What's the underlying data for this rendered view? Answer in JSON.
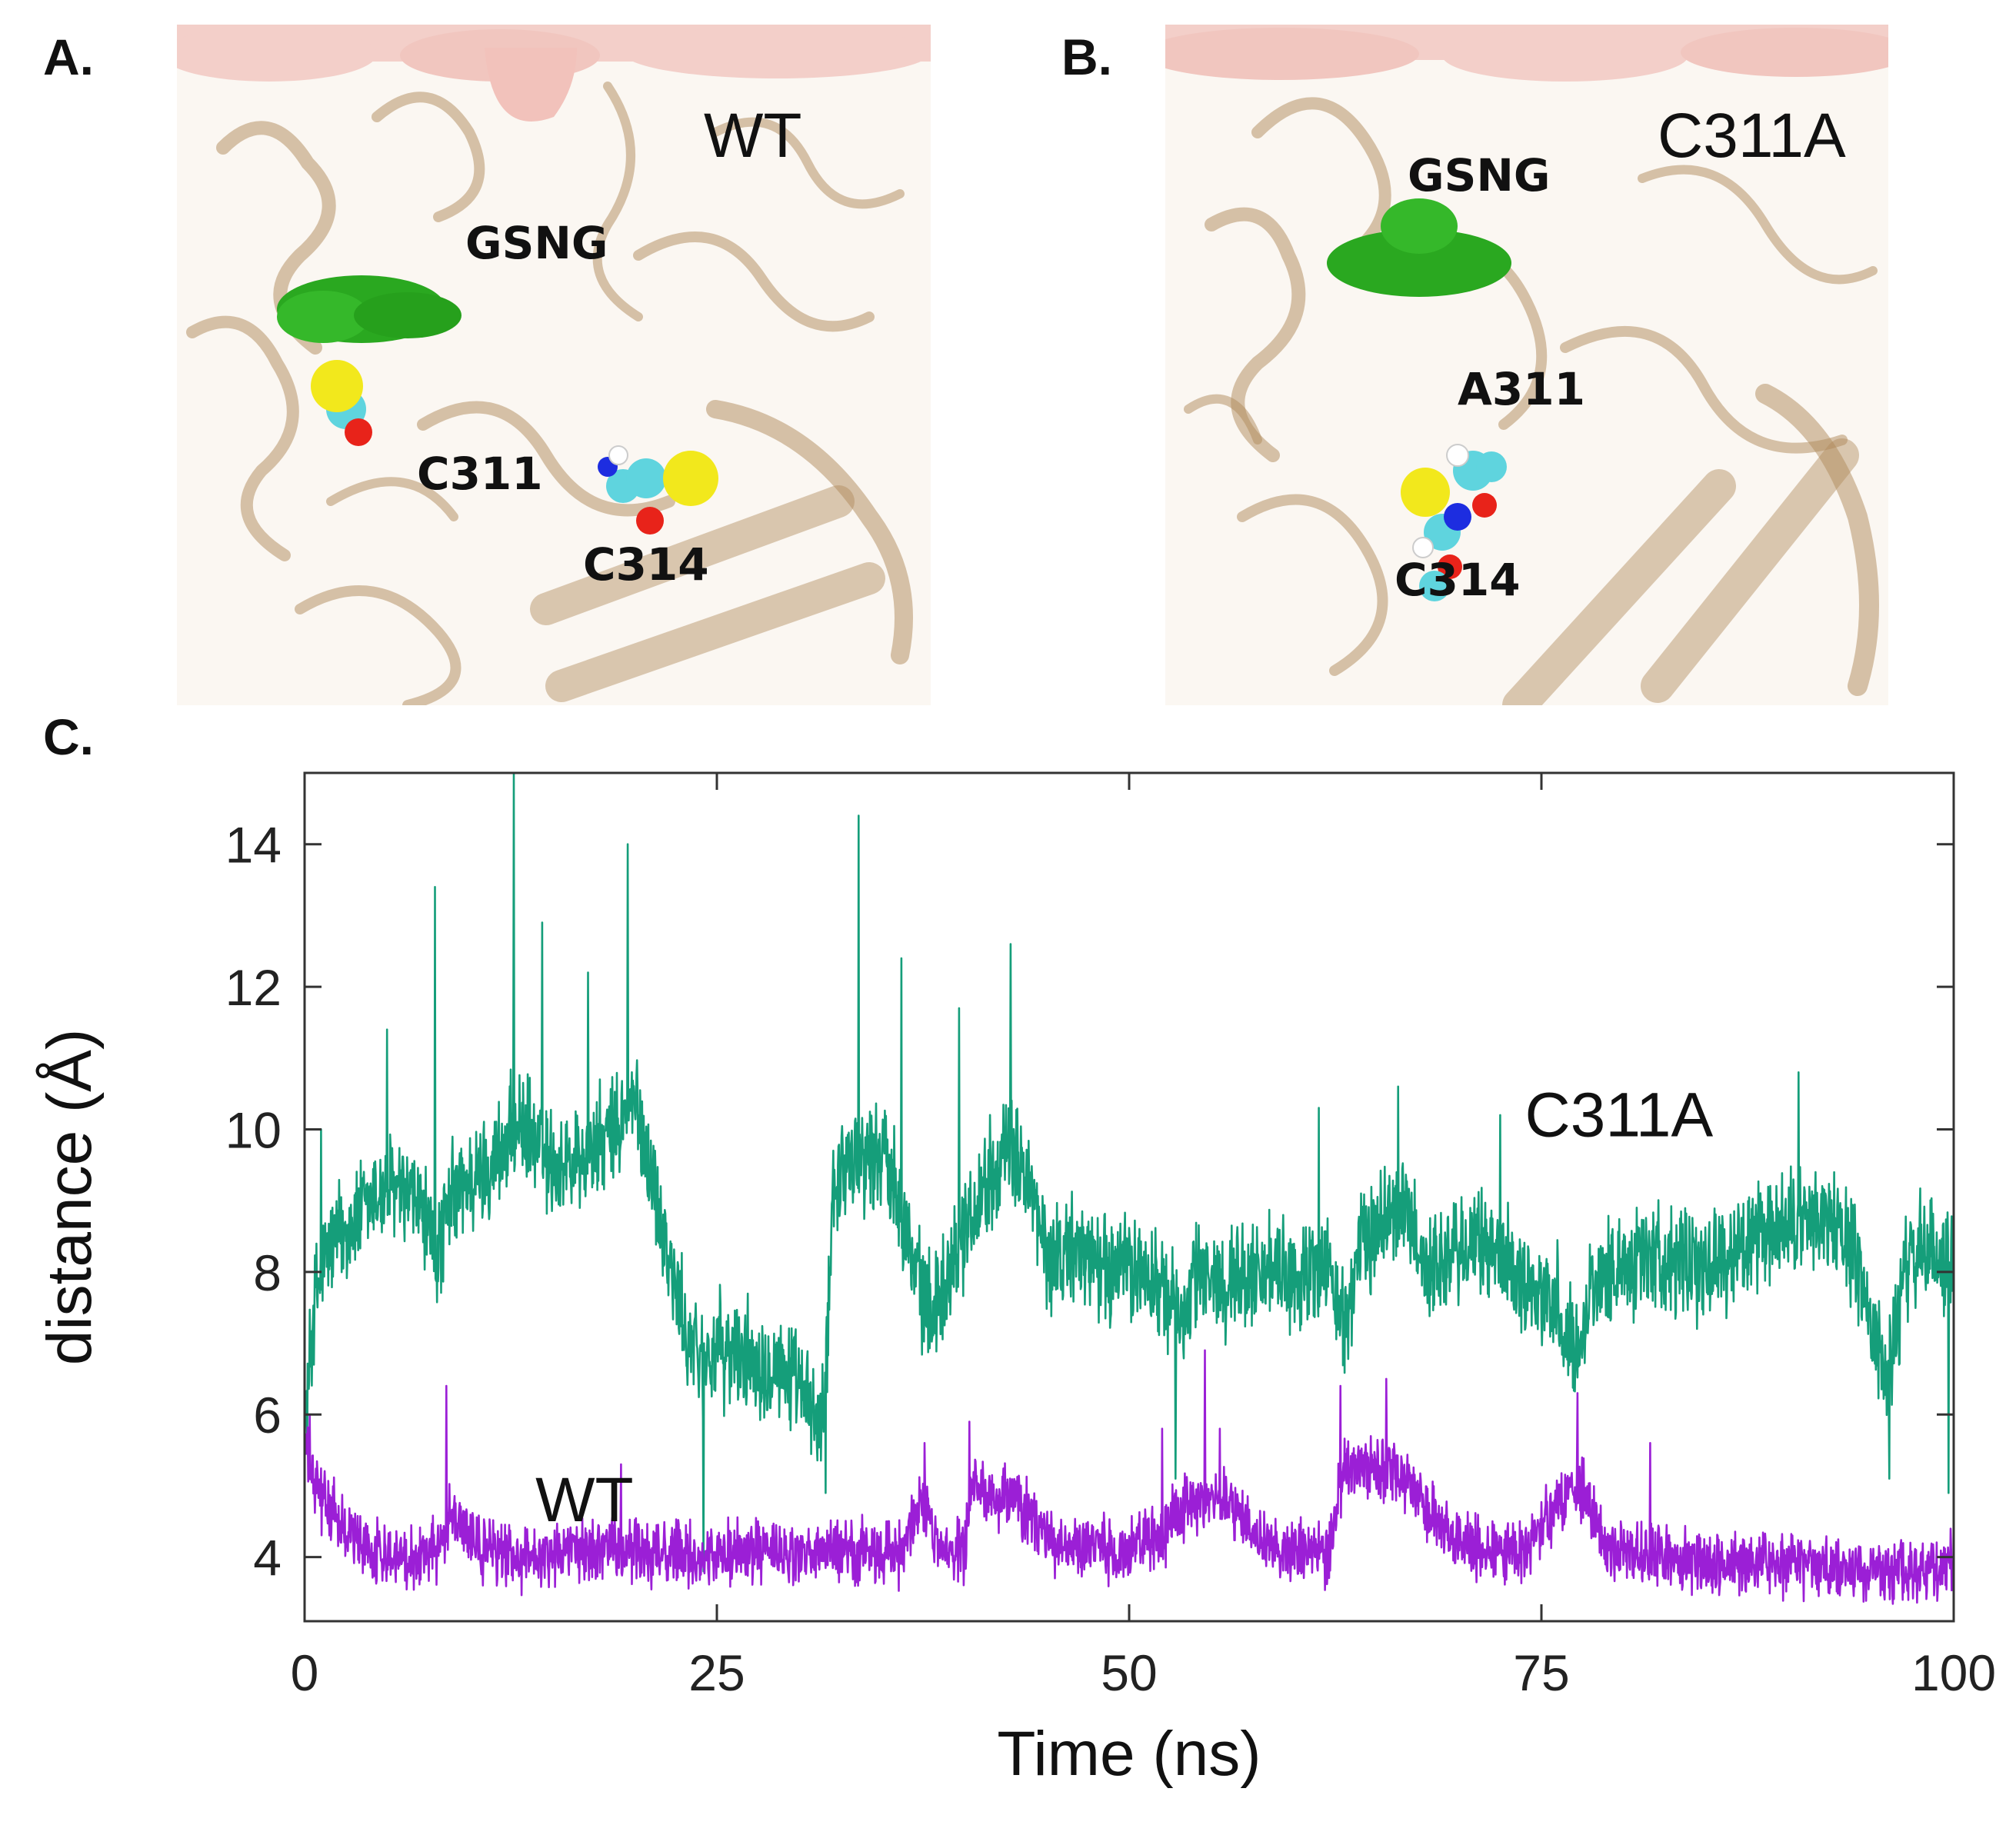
{
  "panels": {
    "a": {
      "letter": "A.",
      "variant": "WT",
      "labels": {
        "ligand": "GSNG",
        "res1": "C311",
        "res2": "C314"
      }
    },
    "b": {
      "letter": "B.",
      "variant": "C311A",
      "labels": {
        "ligand": "GSNG",
        "res1": "A311",
        "res2": "C314"
      }
    },
    "c": {
      "letter": "C."
    }
  },
  "colors": {
    "membrane": "#f3cfc9",
    "protein": "#b08a5a",
    "ligand": "#2aa820",
    "carbon": "#5fd4de",
    "sulfur": "#f2e81c",
    "oxygen": "#e8231a",
    "nitrogen": "#1d2de0",
    "hydrogen": "#ffffff"
  },
  "chart_data": {
    "type": "line",
    "title": "",
    "xlabel": "Time (ns)",
    "ylabel": "distance (Å)",
    "xlim": [
      0,
      100
    ],
    "ylim": [
      3.1,
      15
    ],
    "xticks": [
      0,
      25,
      50,
      75,
      100
    ],
    "yticks": [
      4,
      6,
      8,
      10,
      12,
      14
    ],
    "grid": false,
    "series": [
      {
        "name": "C311A",
        "color": "#159e7a",
        "label_at": [
          74,
          9.9
        ],
        "baseline": [
          [
            0,
            5.8
          ],
          [
            0.6,
            7.6
          ],
          [
            1.5,
            8.4
          ],
          [
            3,
            8.7
          ],
          [
            5,
            9.2
          ],
          [
            7,
            8.9
          ],
          [
            8,
            8.2
          ],
          [
            9,
            9.1
          ],
          [
            11,
            9.4
          ],
          [
            13,
            10.1
          ],
          [
            15,
            9.5
          ],
          [
            17,
            9.6
          ],
          [
            19,
            10.0
          ],
          [
            20,
            10.4
          ],
          [
            21,
            9.4
          ],
          [
            22,
            8.3
          ],
          [
            23,
            7.2
          ],
          [
            24,
            6.8
          ],
          [
            25,
            6.9
          ],
          [
            27,
            6.8
          ],
          [
            29,
            6.7
          ],
          [
            30,
            6.3
          ],
          [
            31.5,
            5.8
          ],
          [
            32,
            9.2
          ],
          [
            33,
            9.6
          ],
          [
            35,
            9.7
          ],
          [
            36,
            9.2
          ],
          [
            37,
            8.0
          ],
          [
            38,
            7.4
          ],
          [
            40,
            8.6
          ],
          [
            42,
            9.6
          ],
          [
            43.5,
            9.6
          ],
          [
            45,
            8.2
          ],
          [
            47,
            8.3
          ],
          [
            49,
            8.0
          ],
          [
            50,
            8.1
          ],
          [
            52,
            7.8
          ],
          [
            53,
            7.3
          ],
          [
            54,
            7.9
          ],
          [
            56,
            7.9
          ],
          [
            58,
            8.0
          ],
          [
            60,
            7.9
          ],
          [
            62,
            8.1
          ],
          [
            63,
            7.2
          ],
          [
            64,
            8.3
          ],
          [
            66,
            8.9
          ],
          [
            67,
            8.8
          ],
          [
            68,
            8.0
          ],
          [
            70,
            8.3
          ],
          [
            72,
            8.4
          ],
          [
            74,
            7.9
          ],
          [
            76,
            7.5
          ],
          [
            77,
            6.8
          ],
          [
            78,
            7.8
          ],
          [
            80,
            8.1
          ],
          [
            82,
            8.3
          ],
          [
            84,
            8.0
          ],
          [
            86,
            8.2
          ],
          [
            88,
            8.4
          ],
          [
            90,
            8.6
          ],
          [
            92,
            8.8
          ],
          [
            94,
            8.3
          ],
          [
            95,
            7.3
          ],
          [
            96,
            6.4
          ],
          [
            97,
            8.0
          ],
          [
            98,
            8.3
          ],
          [
            100,
            8.1
          ]
        ],
        "noise": 0.95,
        "spikes": [
          [
            1.0,
            10.0
          ],
          [
            5.0,
            11.4
          ],
          [
            7.9,
            13.4
          ],
          [
            12.7,
            15.0
          ],
          [
            14.4,
            12.9
          ],
          [
            17.2,
            12.2
          ],
          [
            19.6,
            14.0
          ],
          [
            24.2,
            3.8
          ],
          [
            31.6,
            4.9
          ],
          [
            33.6,
            14.4
          ],
          [
            36.2,
            12.4
          ],
          [
            39.7,
            11.7
          ],
          [
            42.8,
            12.6
          ],
          [
            52.8,
            5.1
          ],
          [
            61.5,
            10.3
          ],
          [
            66.3,
            10.6
          ],
          [
            72.5,
            10.2
          ],
          [
            90.6,
            10.8
          ],
          [
            96.1,
            5.1
          ],
          [
            99.7,
            4.9
          ]
        ]
      },
      {
        "name": "WT",
        "color": "#9b1fd6",
        "label_at": [
          14,
          4.5
        ],
        "baseline": [
          [
            0,
            5.6
          ],
          [
            0.6,
            5.0
          ],
          [
            2,
            4.5
          ],
          [
            4,
            4.1
          ],
          [
            6,
            4.0
          ],
          [
            8,
            4.1
          ],
          [
            9,
            4.7
          ],
          [
            10,
            4.2
          ],
          [
            13,
            4.0
          ],
          [
            16,
            4.1
          ],
          [
            20,
            4.1
          ],
          [
            24,
            4.0
          ],
          [
            27,
            4.1
          ],
          [
            30,
            4.0
          ],
          [
            33,
            4.1
          ],
          [
            36,
            4.0
          ],
          [
            37.5,
            4.8
          ],
          [
            38.5,
            4.0
          ],
          [
            40,
            4.1
          ],
          [
            40.5,
            4.9
          ],
          [
            43,
            4.8
          ],
          [
            45,
            4.3
          ],
          [
            46,
            4.1
          ],
          [
            50,
            4.1
          ],
          [
            52,
            4.3
          ],
          [
            53,
            4.7
          ],
          [
            56,
            4.8
          ],
          [
            58,
            4.2
          ],
          [
            60,
            4.1
          ],
          [
            62,
            4.0
          ],
          [
            63,
            5.2
          ],
          [
            66,
            5.3
          ],
          [
            68,
            4.7
          ],
          [
            70,
            4.2
          ],
          [
            74,
            4.1
          ],
          [
            76,
            4.8
          ],
          [
            77.5,
            5.0
          ],
          [
            79,
            4.1
          ],
          [
            82,
            4.0
          ],
          [
            86,
            3.9
          ],
          [
            90,
            3.9
          ],
          [
            94,
            3.8
          ],
          [
            97,
            3.8
          ],
          [
            100,
            3.9
          ]
        ],
        "noise": 0.55,
        "spikes": [
          [
            0.3,
            6.0
          ],
          [
            8.6,
            6.4
          ],
          [
            19.2,
            5.3
          ],
          [
            37.6,
            5.6
          ],
          [
            40.3,
            5.9
          ],
          [
            52.0,
            5.8
          ],
          [
            54.6,
            6.9
          ],
          [
            55.5,
            5.8
          ],
          [
            62.8,
            6.4
          ],
          [
            65.6,
            6.5
          ],
          [
            77.2,
            6.3
          ],
          [
            81.6,
            5.6
          ],
          [
            96.9,
            3.4
          ],
          [
            100,
            4.6
          ]
        ]
      }
    ]
  }
}
